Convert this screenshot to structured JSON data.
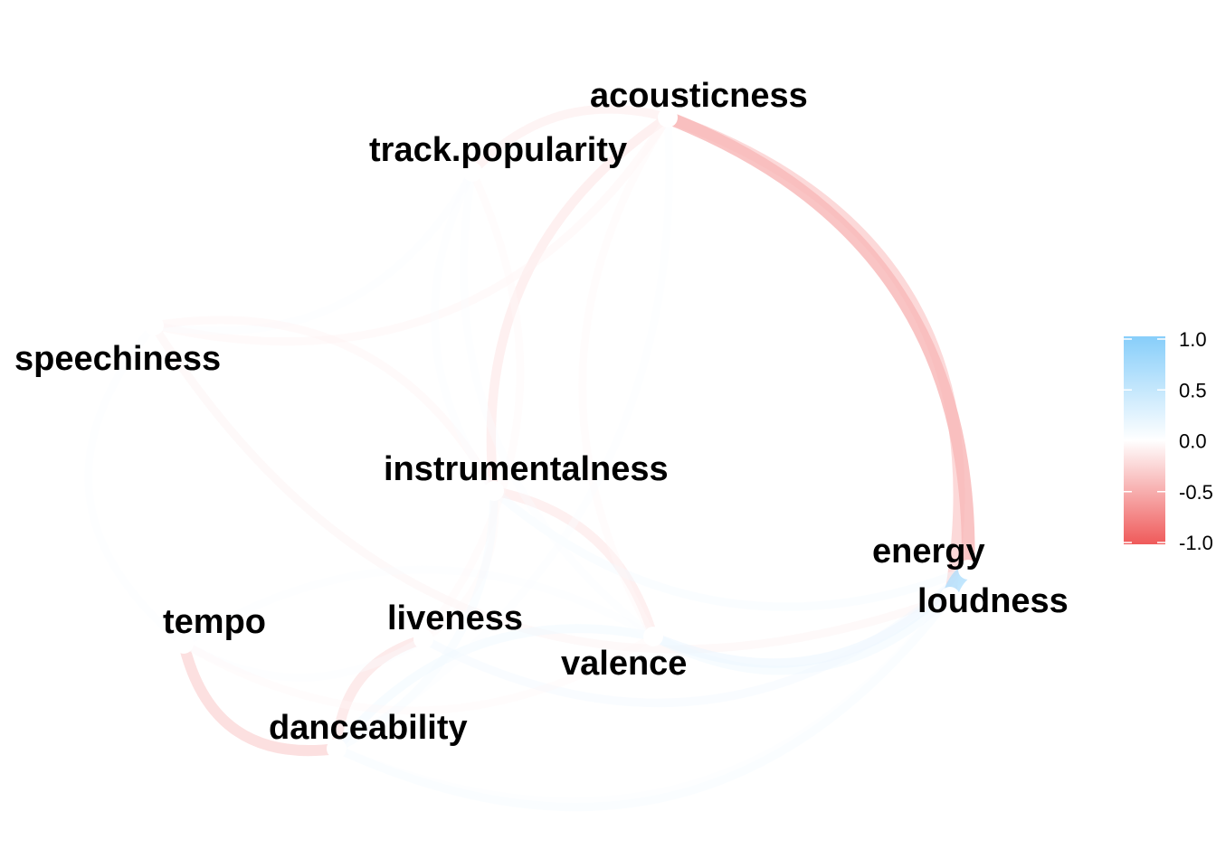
{
  "chart_data": {
    "type": "network",
    "nodes": [
      {
        "id": "acousticness",
        "label": "acousticness"
      },
      {
        "id": "track.popularity",
        "label": "track.popularity"
      },
      {
        "id": "speechiness",
        "label": "speechiness"
      },
      {
        "id": "instrumentalness",
        "label": "instrumentalness"
      },
      {
        "id": "energy",
        "label": "energy"
      },
      {
        "id": "loudness",
        "label": "loudness"
      },
      {
        "id": "tempo",
        "label": "tempo"
      },
      {
        "id": "liveness",
        "label": "liveness"
      },
      {
        "id": "valence",
        "label": "valence"
      },
      {
        "id": "danceability",
        "label": "danceability"
      }
    ],
    "edges": [
      {
        "from": "energy",
        "to": "acousticness",
        "r": -0.55
      },
      {
        "from": "loudness",
        "to": "acousticness",
        "r": -0.4
      },
      {
        "from": "tempo",
        "to": "danceability",
        "r": -0.35
      },
      {
        "from": "liveness",
        "to": "danceability",
        "r": -0.25
      },
      {
        "from": "valence",
        "to": "instrumentalness",
        "r": -0.2
      },
      {
        "from": "acousticness",
        "to": "instrumentalness",
        "r": -0.2
      },
      {
        "from": "acousticness",
        "to": "track.popularity",
        "r": -0.15
      },
      {
        "from": "speechiness",
        "to": "acousticness",
        "r": -0.08
      },
      {
        "from": "speechiness",
        "to": "loudness",
        "r": -0.1
      },
      {
        "from": "speechiness",
        "to": "tempo",
        "r": 0.05
      },
      {
        "from": "speechiness",
        "to": "track.popularity",
        "r": 0.05
      },
      {
        "from": "instrumentalness",
        "to": "speechiness",
        "r": -0.08
      },
      {
        "from": "instrumentalness",
        "to": "energy",
        "r": 0.1
      },
      {
        "from": "valence",
        "to": "danceability",
        "r": 0.15
      },
      {
        "from": "valence",
        "to": "energy",
        "r": 0.2
      },
      {
        "from": "valence",
        "to": "loudness",
        "r": 0.15
      },
      {
        "from": "valence",
        "to": "tempo",
        "r": 0.05
      },
      {
        "from": "liveness",
        "to": "energy",
        "r": 0.12
      },
      {
        "from": "liveness",
        "to": "instrumentalness",
        "r": -0.05
      },
      {
        "from": "liveness",
        "to": "track.popularity",
        "r": -0.05
      },
      {
        "from": "danceability",
        "to": "loudness",
        "r": 0.1
      },
      {
        "from": "danceability",
        "to": "energy",
        "r": 0.05
      },
      {
        "from": "danceability",
        "to": "instrumentalness",
        "r": 0.1
      },
      {
        "from": "track.popularity",
        "to": "instrumentalness",
        "r": 0.05
      },
      {
        "from": "track.popularity",
        "to": "valence",
        "r": 0.04
      },
      {
        "from": "acousticness",
        "to": "valence",
        "r": -0.05
      },
      {
        "from": "energy",
        "to": "loudness",
        "r": 0.7
      },
      {
        "from": "tempo",
        "to": "liveness",
        "r": 0.05
      },
      {
        "from": "tempo",
        "to": "valence",
        "r": -0.05
      },
      {
        "from": "danceability",
        "to": "acousticness",
        "r": 0.05
      }
    ],
    "legend": {
      "ticks": [
        "1.0",
        "0.5",
        "0.0",
        "-0.5",
        "-1.0"
      ],
      "range": [
        -1,
        1
      ],
      "colors": {
        "negative": "#ef5a5a",
        "zero": "#ffffff",
        "positive": "#87cefa"
      }
    }
  }
}
